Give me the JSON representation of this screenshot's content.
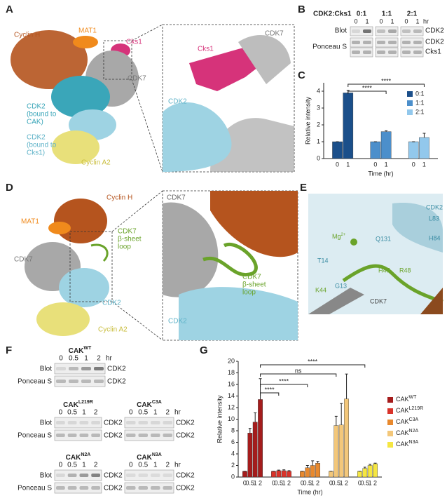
{
  "panel_labels": [
    "A",
    "B",
    "C",
    "D",
    "E",
    "F",
    "G"
  ],
  "panel_a": {
    "cyclin_h": "Cyclin H",
    "mat1": "MAT1",
    "cks1": "Cks1",
    "cdk7": "CDK7",
    "cdk2_cak": [
      "CDK2",
      "(bound to",
      "CAK)"
    ],
    "cdk2_cks1": [
      "CDK2",
      "(bound to",
      "Cks1)"
    ],
    "cyclin_a2": "Cyclin A2",
    "inset": {
      "cdk7": "CDK7",
      "cks1": "Cks1",
      "cdk2": "CDK2"
    }
  },
  "panel_b": {
    "title": "CDK2:Cks1",
    "ratios": [
      "0:1",
      "1:1",
      "2:1"
    ],
    "times": [
      "0",
      "1"
    ],
    "unit": "hr",
    "rows": [
      "Blot",
      "Ponceau S"
    ],
    "proteins": [
      "CDK2",
      "CDK2",
      "Cks1"
    ]
  },
  "panel_d": {
    "mat1": "MAT1",
    "cyclin_h": "Cyclin H",
    "loop": [
      "CDK7",
      "β-sheet",
      "loop"
    ],
    "cdk7": "CDK7",
    "cdk2": "CDK2",
    "cyclin_a2": "Cyclin A2",
    "inset": {
      "cdk7": "CDK7",
      "loop": [
        "CDK7",
        "β-sheet",
        "loop"
      ],
      "cdk2": "CDK2"
    }
  },
  "panel_e": {
    "cdk2": "CDK2",
    "l83": "L83",
    "h84": "H84",
    "q131": "Q131",
    "mg": "Mg",
    "mg_charge": "2+",
    "r48": "R48",
    "h47": "H47",
    "t14": "T14",
    "g13": "G13",
    "k44": "K44",
    "cdk7": "CDK7"
  },
  "panel_f": {
    "blots": [
      {
        "name": "CAK",
        "superscript": "WT",
        "times": [
          "0",
          "0.5",
          "1",
          "2"
        ],
        "unit": "hr",
        "rows": [
          {
            "label": "Blot",
            "protein": "CDK2"
          },
          {
            "label": "Ponceau S",
            "protein": "CDK2"
          }
        ]
      },
      {
        "name": "CAK",
        "superscript": "L219R",
        "times": [
          "0",
          "0.5",
          "1",
          "2"
        ],
        "rows": [
          {
            "label": "Blot",
            "protein": "CDK2"
          },
          {
            "label": "Ponceau S",
            "protein": "CDK2"
          }
        ]
      },
      {
        "name": "CAK",
        "superscript": "C3A",
        "times": [
          "0",
          "0.5",
          "1",
          "2"
        ],
        "unit": "hr",
        "rows": [
          {
            "protein": "CDK2"
          },
          {
            "protein": "CDK2"
          }
        ]
      },
      {
        "name": "CAK",
        "superscript": "N2A",
        "times": [
          "0",
          "0.5",
          "1",
          "2"
        ],
        "rows": [
          {
            "label": "Blot",
            "protein": "CDK2"
          },
          {
            "label": "Ponceau S",
            "protein": "CDK2"
          }
        ]
      },
      {
        "name": "CAK",
        "superscript": "N3A",
        "times": [
          "0",
          "0.5",
          "1",
          "2"
        ],
        "unit": "hr",
        "rows": [
          {
            "protein": "CDK2"
          },
          {
            "protein": "CDK2"
          }
        ]
      }
    ]
  },
  "chart_data": [
    {
      "type": "bar",
      "x_label": "Time (hr)",
      "y_label": "Relative intensity",
      "categories": [
        "0",
        "1"
      ],
      "series": [
        {
          "name": "0:1",
          "color": "#1b4f8a",
          "values": [
            1,
            3.9
          ],
          "errors": [
            0,
            0.15
          ]
        },
        {
          "name": "1:1",
          "color": "#4c8fcb",
          "values": [
            1,
            1.6
          ],
          "errors": [
            0,
            0.05
          ]
        },
        {
          "name": "2:1",
          "color": "#92c8ec",
          "values": [
            1,
            1.25
          ],
          "errors": [
            0,
            0.25
          ]
        }
      ],
      "ylim": [
        0,
        4.5
      ],
      "yticks": [
        0,
        1,
        2,
        3,
        4
      ],
      "legend": "upper right",
      "annotations": [
        "****",
        "****"
      ]
    },
    {
      "type": "bar",
      "x_label": "Time (hr)",
      "y_label": "Relative intensity",
      "categories": [
        "0",
        "0.5",
        "1",
        "2"
      ],
      "series": [
        {
          "name": "CAK",
          "superscript": "WT",
          "color": "#a51c1c",
          "values": [
            1,
            7.6,
            9.5,
            13.4
          ],
          "errors": [
            0,
            0.8,
            1.6,
            3.6
          ]
        },
        {
          "name": "CAK",
          "superscript": "L219R",
          "color": "#d9342b",
          "values": [
            1,
            1.1,
            1.1,
            1.0
          ],
          "errors": [
            0,
            0.1,
            0.15,
            0.1
          ]
        },
        {
          "name": "CAK",
          "superscript": "C3A",
          "color": "#e8892e",
          "values": [
            1,
            1.6,
            2.0,
            2.4
          ],
          "errors": [
            0,
            0.4,
            0.8,
            0.3
          ]
        },
        {
          "name": "CAK",
          "superscript": "N2A",
          "color": "#f3c77a",
          "values": [
            1,
            8.9,
            9.0,
            13.5
          ],
          "errors": [
            0,
            1.6,
            3.7,
            4.3
          ]
        },
        {
          "name": "CAK",
          "superscript": "N3A",
          "color": "#f5e642",
          "values": [
            1,
            1.5,
            2.0,
            2.3
          ],
          "errors": [
            0,
            0.2,
            0.2,
            0.1
          ]
        }
      ],
      "ylim": [
        0,
        20
      ],
      "yticks": [
        0,
        2,
        4,
        6,
        8,
        10,
        12,
        14,
        16,
        18,
        20
      ],
      "legend": "right",
      "annotations": [
        "****",
        "****",
        "ns",
        "****"
      ]
    }
  ]
}
